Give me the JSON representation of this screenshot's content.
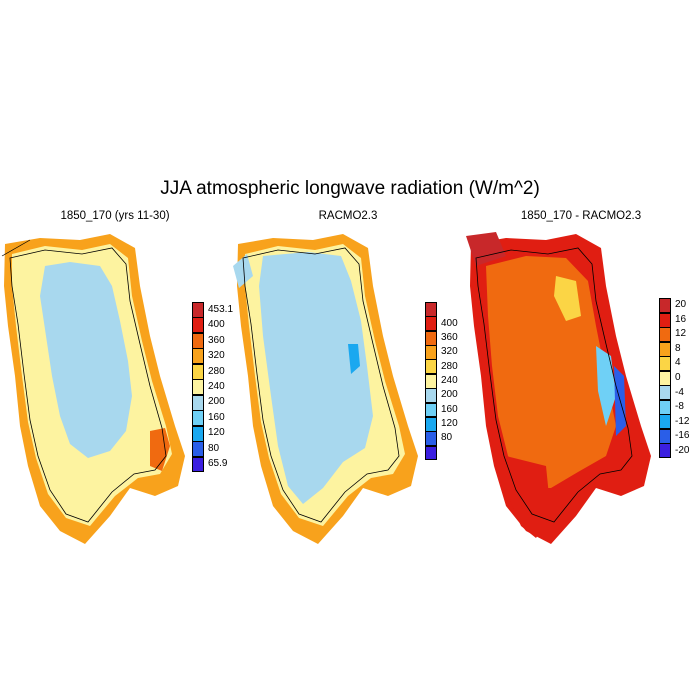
{
  "title": "JJA atmospheric longwave radiation (W/m^2)",
  "panels": [
    {
      "title": "1850_170 (yrs 11-30)",
      "colorbar": {
        "colors": [
          "#3b1fe0",
          "#2a5ee8",
          "#1aa8f0",
          "#6fd0f6",
          "#a8d8ee",
          "#fdf3a0",
          "#fbd545",
          "#f8a21c",
          "#f06a10",
          "#e01e12",
          "#c8282a"
        ],
        "labels": [
          "65.9",
          "80",
          "120",
          "160",
          "200",
          "240",
          "280",
          "320",
          "360",
          "400",
          "453.1"
        ]
      }
    },
    {
      "title": "RACMO2.3",
      "colorbar": {
        "colors": [
          "#3b1fe0",
          "#2a5ee8",
          "#1aa8f0",
          "#6fd0f6",
          "#a8d8ee",
          "#fdf3a0",
          "#fbd545",
          "#f8a21c",
          "#f06a10",
          "#e01e12",
          "#c8282a"
        ],
        "labels": [
          "80",
          "120",
          "160",
          "200",
          "240",
          "280",
          "320",
          "360",
          "400"
        ]
      }
    },
    {
      "title": "1850_170 - RACMO2.3",
      "colorbar": {
        "colors": [
          "#3b1fe0",
          "#2a5ee8",
          "#1aa8f0",
          "#6fd0f6",
          "#a8d8ee",
          "#fdf3a0",
          "#fbd545",
          "#f8a21c",
          "#f06a10",
          "#e01e12",
          "#c8282a"
        ],
        "labels": [
          "-20",
          "-16",
          "-12",
          "-8",
          "-4",
          "0",
          "4",
          "8",
          "12",
          "16",
          "20"
        ]
      }
    }
  ]
}
